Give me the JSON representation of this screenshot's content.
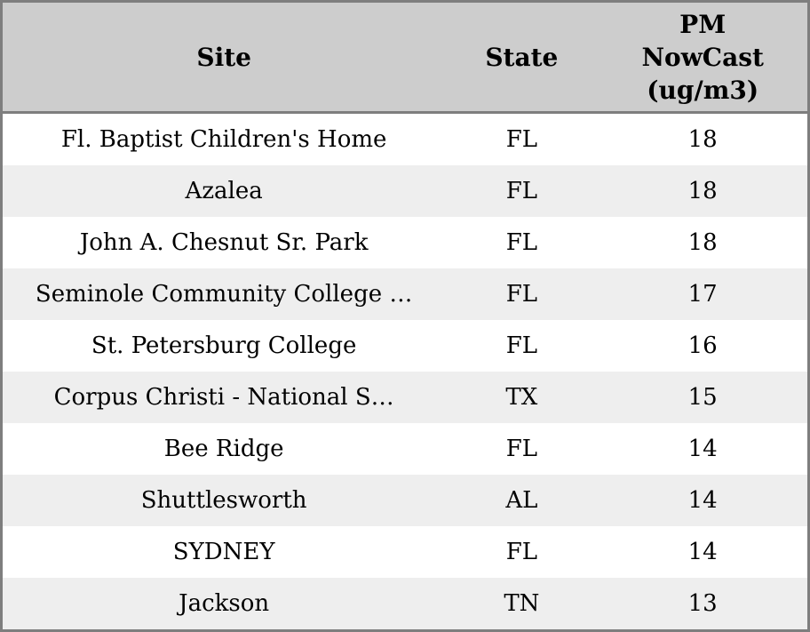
{
  "chart_data": {
    "type": "table",
    "columns": [
      "Site",
      "State",
      "PM NowCast (ug/m3)"
    ],
    "rows": [
      [
        "Fl. Baptist Children's Home",
        "FL",
        18
      ],
      [
        "Azalea",
        "FL",
        18
      ],
      [
        "John A. Chesnut Sr. Park",
        "FL",
        18
      ],
      [
        "Seminole Community College …",
        "FL",
        17
      ],
      [
        "St. Petersburg College",
        "FL",
        16
      ],
      [
        "Corpus Christi - National S…",
        "TX",
        15
      ],
      [
        "Bee Ridge",
        "FL",
        14
      ],
      [
        "Shuttlesworth",
        "AL",
        14
      ],
      [
        "SYDNEY",
        "FL",
        14
      ],
      [
        "Jackson",
        "TN",
        13
      ]
    ],
    "layout": {
      "legend": "none",
      "grid": "off",
      "row_striping": "alternating",
      "text_alignment": "center"
    }
  },
  "colors": {
    "header_bg": "#cdcdcd",
    "row_odd_bg": "#eeeeee",
    "row_even_bg": "#ffffff",
    "border": "#7e7e7e",
    "text": "#000000"
  }
}
